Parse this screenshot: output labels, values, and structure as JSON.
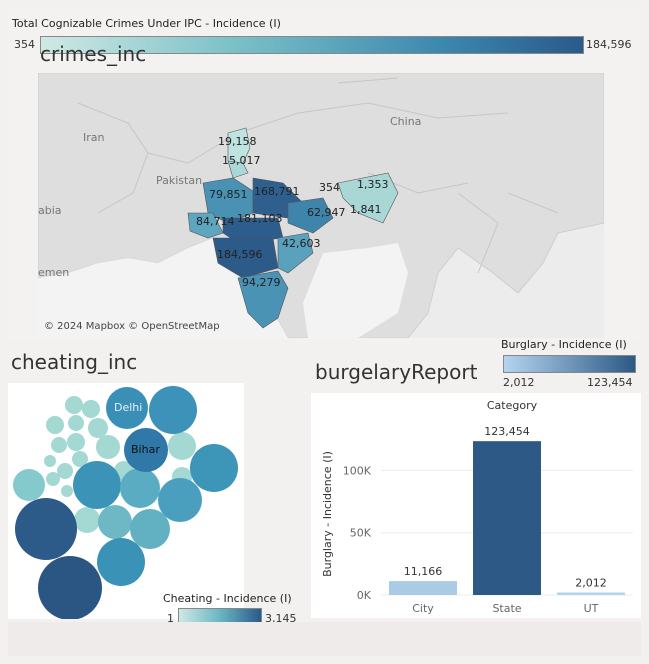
{
  "crimes": {
    "legend_title": "Total Cognizable Crimes Under IPC - Incidence (I)",
    "legend_min": "354",
    "legend_max": "184,596",
    "sheet_title": "crimes_inc",
    "attribution": "© 2024 Mapbox © OpenStreetMap",
    "geo_labels": [
      "Iran",
      "China",
      "Pakistan",
      "abia",
      "emen"
    ],
    "state_labels": [
      "19,158",
      "15,017",
      "79,851",
      "168,791",
      "354",
      "1,353",
      "62,947",
      "1,841",
      "84,714",
      "181,103",
      "42,603",
      "184,596",
      "94,279"
    ],
    "colors": {
      "low": "#bfe3e0",
      "high": "#2a5a8a"
    }
  },
  "cheating": {
    "sheet_title": "cheating_inc",
    "legend_title": "Cheating - Incidence (I)",
    "legend_min": "1",
    "legend_max": "3,145",
    "bubble_labels": [
      "Delhi",
      "Bihar"
    ]
  },
  "burglary": {
    "sheet_title": "burgelaryReport",
    "legend_title": "Burglary - Incidence (I)",
    "legend_min": "2,012",
    "legend_max": "123,454",
    "colors": {
      "low": "#b4d4ee",
      "high": "#2c5985"
    }
  },
  "chart_data": {
    "type": "bar",
    "title": "Category",
    "categories": [
      "City",
      "State",
      "UT"
    ],
    "values": [
      11166,
      123454,
      2012
    ],
    "value_labels": [
      "11,166",
      "123,454",
      "2,012"
    ],
    "ylabel": "Burglary - Incidence (I)",
    "xlabel": "",
    "ylim": [
      0,
      130000
    ],
    "yticks": [
      0,
      50000,
      100000
    ],
    "ytick_labels": [
      "0K",
      "50K",
      "100K"
    ],
    "grid": true
  }
}
